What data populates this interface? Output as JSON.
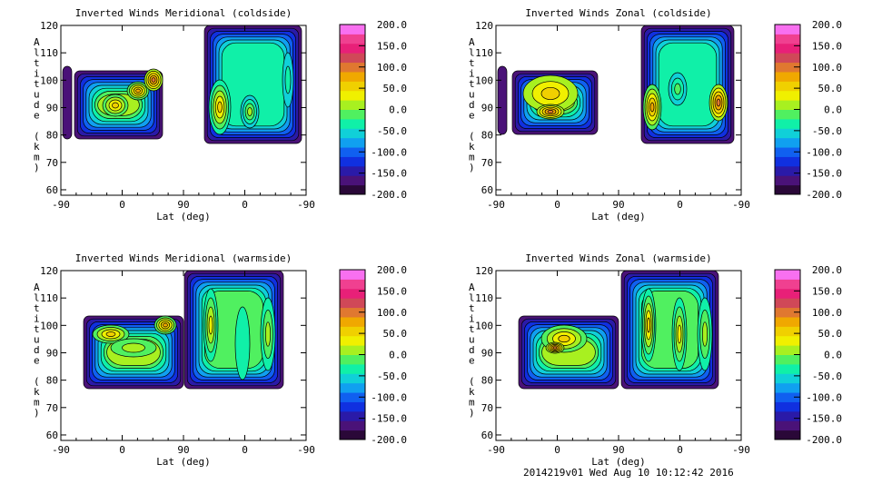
{
  "chart_data": [
    {
      "type": "heatmap",
      "subtype": "filled-contour",
      "title": "Inverted Winds Meridional (coldside)",
      "xlabel": "Lat (deg)",
      "ylabel": "Altitude (km)",
      "x_ticks": [
        "-90",
        "0",
        "90",
        "0",
        "-90"
      ],
      "y_ticks": [
        "60",
        "70",
        "80",
        "90",
        "100",
        "110",
        "120"
      ],
      "ylim": [
        58,
        120
      ],
      "colorbar": {
        "range": [
          -200,
          200
        ],
        "ticks": [
          "200.0",
          "150.0",
          "100.0",
          "50.0",
          "0.0",
          "-50.0",
          "-100.0",
          "-150.0",
          "-200.0"
        ]
      }
    },
    {
      "type": "heatmap",
      "subtype": "filled-contour",
      "title": "Inverted Winds Zonal (coldside)",
      "xlabel": "Lat (deg)",
      "ylabel": "Altitude (km)",
      "x_ticks": [
        "-90",
        "0",
        "90",
        "0",
        "-90"
      ],
      "y_ticks": [
        "60",
        "70",
        "80",
        "90",
        "100",
        "110",
        "120"
      ],
      "ylim": [
        58,
        120
      ],
      "colorbar": {
        "range": [
          -200,
          200
        ],
        "ticks": [
          "200.0",
          "150.0",
          "100.0",
          "50.0",
          "0.0",
          "-50.0",
          "-100.0",
          "-150.0",
          "-200.0"
        ]
      }
    },
    {
      "type": "heatmap",
      "subtype": "filled-contour",
      "title": "Inverted Winds Meridional (warmside)",
      "xlabel": "Lat (deg)",
      "ylabel": "Altitude (km)",
      "x_ticks": [
        "-90",
        "0",
        "90",
        "0",
        "-90"
      ],
      "y_ticks": [
        "60",
        "70",
        "80",
        "90",
        "100",
        "110",
        "120"
      ],
      "ylim": [
        58,
        120
      ],
      "colorbar": {
        "range": [
          -200,
          200
        ],
        "ticks": [
          "200.0",
          "150.0",
          "100.0",
          "50.0",
          "0.0",
          "-50.0",
          "-100.0",
          "-150.0",
          "-200.0"
        ]
      }
    },
    {
      "type": "heatmap",
      "subtype": "filled-contour",
      "title": "Inverted Winds Zonal (warmside)",
      "xlabel": "Lat (deg)",
      "ylabel": "Altitude (km)",
      "x_ticks": [
        "-90",
        "0",
        "90",
        "0",
        "-90"
      ],
      "y_ticks": [
        "60",
        "70",
        "80",
        "90",
        "100",
        "110",
        "120"
      ],
      "ylim": [
        58,
        120
      ],
      "colorbar": {
        "range": [
          -200,
          200
        ],
        "ticks": [
          "200.0",
          "150.0",
          "100.0",
          "50.0",
          "0.0",
          "-50.0",
          "-100.0",
          "-150.0",
          "-200.0"
        ]
      }
    }
  ],
  "colorscale": [
    "#2a0838",
    "#4a1278",
    "#2a1aa8",
    "#1030e0",
    "#1060f0",
    "#10a0f0",
    "#10d0d8",
    "#10f0a8",
    "#50f060",
    "#a8f020",
    "#f0f000",
    "#f0d000",
    "#f0a800",
    "#e07830",
    "#d04858",
    "#e82078",
    "#f04090",
    "#f870f0"
  ],
  "footer": "2014219v01 Wed Aug 10 10:12:42 2016"
}
